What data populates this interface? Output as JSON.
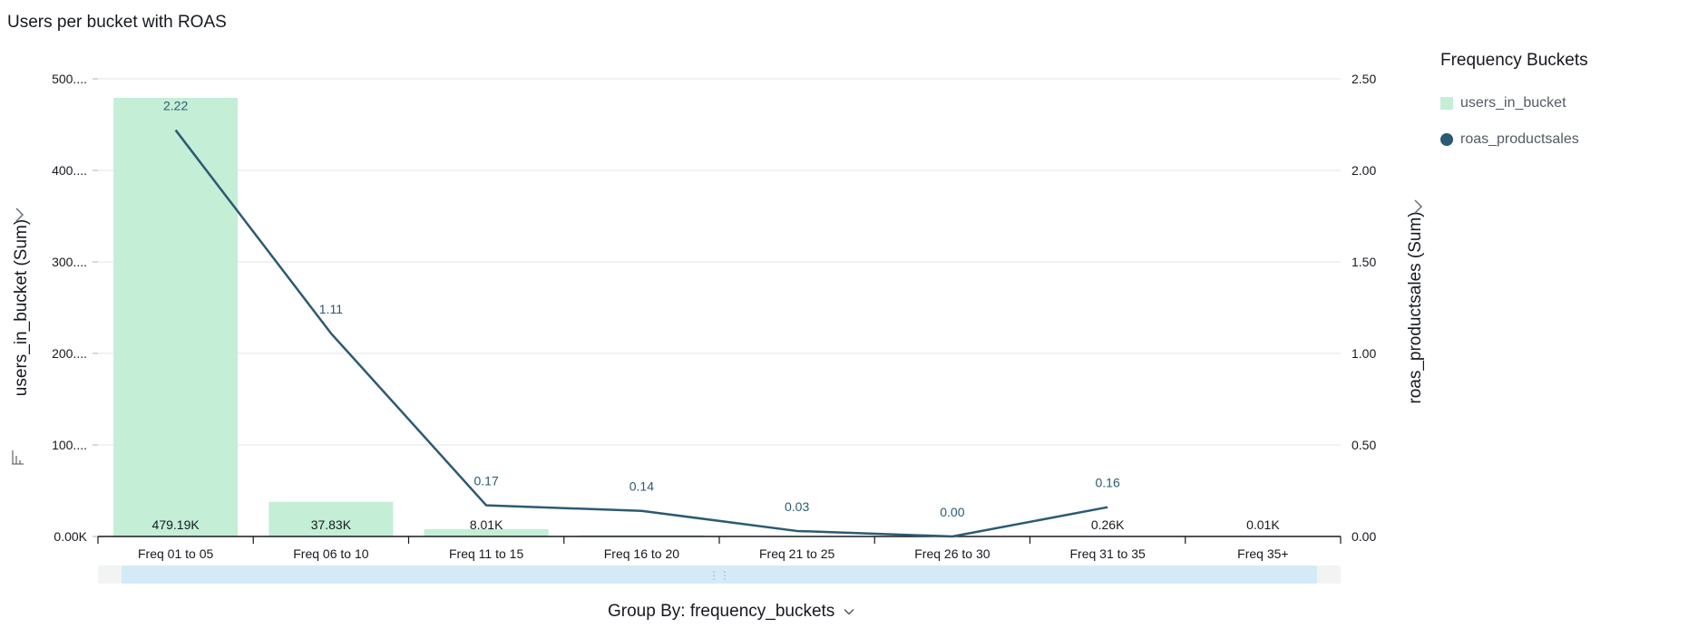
{
  "chart_data": {
    "type": "bar+line",
    "title": "Users per bucket with ROAS",
    "xlabel": "",
    "categories": [
      "Freq 01 to 05",
      "Freq 06 to 10",
      "Freq 11 to 15",
      "Freq 16 to 20",
      "Freq 21 to 25",
      "Freq 26 to 30",
      "Freq 31 to 35",
      "Freq 35+"
    ],
    "bar_series": {
      "name": "users_in_bucket",
      "axis": "left",
      "values": [
        479190,
        37830,
        8010,
        1500,
        300,
        100,
        260,
        10
      ],
      "labels": [
        "479.19K",
        "37.83K",
        "8.01K",
        "",
        "",
        "",
        "0.26K",
        "0.01K"
      ]
    },
    "line_series": {
      "name": "roas_productsales",
      "axis": "right",
      "values": [
        2.22,
        1.11,
        0.17,
        0.14,
        0.03,
        0.0,
        0.16,
        null
      ],
      "labels": [
        "2.22",
        "1.11",
        "0.17",
        "0.14",
        "0.03",
        "0.00",
        "0.16",
        ""
      ]
    },
    "y_left": {
      "label": "users_in_bucket (Sum)",
      "range": [
        0,
        500000
      ],
      "ticks": [
        0,
        100000,
        200000,
        300000,
        400000,
        500000
      ],
      "tick_labels": [
        "0.00K",
        "100....",
        "200....",
        "300....",
        "400....",
        "500...."
      ]
    },
    "y_right": {
      "label": "roas_productsales (Sum)",
      "range": [
        0,
        2.5
      ],
      "ticks": [
        0,
        0.5,
        1.0,
        1.5,
        2.0,
        2.5
      ],
      "tick_labels": [
        "0.00",
        "0.50",
        "1.00",
        "1.50",
        "2.00",
        "2.50"
      ]
    },
    "grid": true,
    "legend_position": "right"
  },
  "legend": {
    "title": "Frequency Buckets",
    "items": [
      {
        "label": "users_in_bucket"
      },
      {
        "label": "roas_productsales"
      }
    ]
  },
  "groupby": {
    "label": "Group By: frequency_buckets"
  },
  "colors": {
    "bar": "#c4eed6",
    "line": "#2c5a74",
    "grid": "#e6e6e6",
    "axis": "#16191f",
    "scroll_track": "#d4eaf7"
  }
}
